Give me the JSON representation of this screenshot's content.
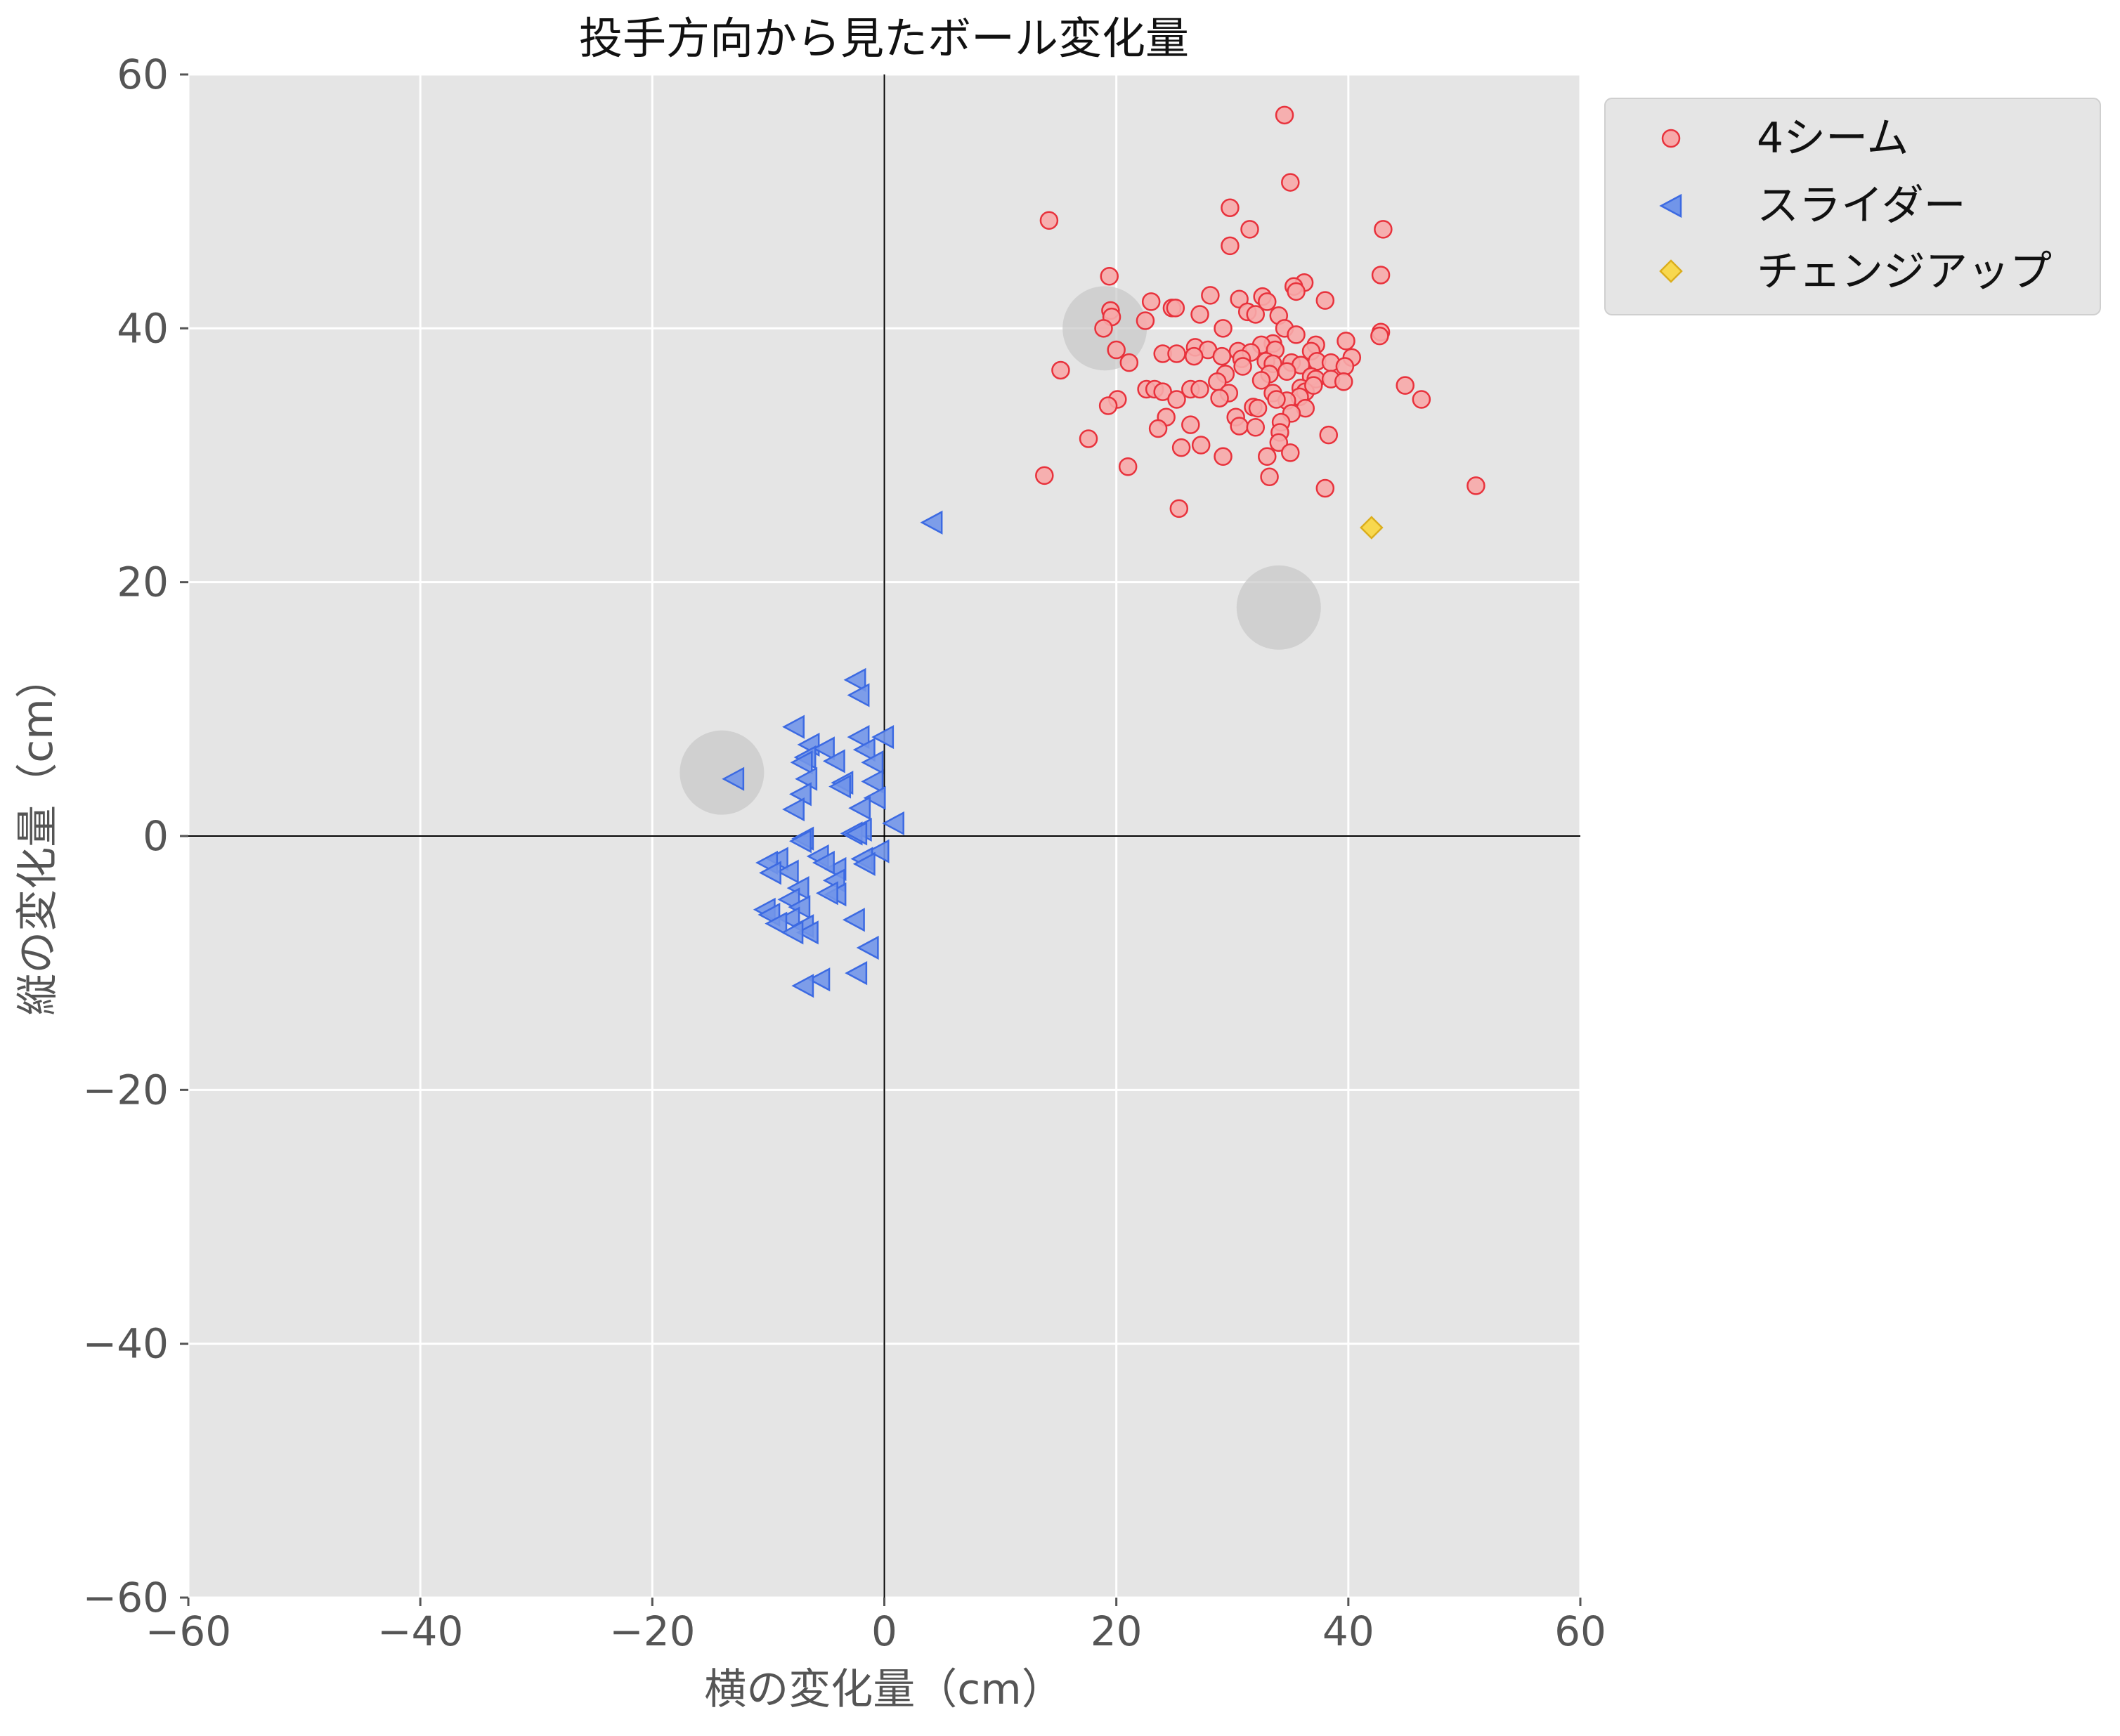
{
  "chart_data": {
    "type": "scatter",
    "title": "投手方向から見たボール変化量",
    "xlabel": "横の変化量（cm）",
    "ylabel": "縦の変化量（cm）",
    "xlim": [
      -60,
      60
    ],
    "ylim": [
      -60,
      60
    ],
    "xticks": [
      -60,
      -40,
      -20,
      0,
      20,
      40,
      60
    ],
    "yticks": [
      -60,
      -40,
      -20,
      0,
      20,
      40,
      60
    ],
    "xtick_labels": [
      "−60",
      "−40",
      "−20",
      "0",
      "20",
      "40",
      "60"
    ],
    "ytick_labels": [
      "−60",
      "−40",
      "−20",
      "0",
      "20",
      "40",
      "60"
    ],
    "grid": true,
    "background": "#e5e5e5",
    "legend_position": "outside-top-right",
    "zero_lines": true,
    "series": [
      {
        "name": "4シーム",
        "marker": "circle",
        "fill": "#f7a9a9",
        "edge": "#e8323c",
        "points": [
          [
            34.5,
            56.8
          ],
          [
            35,
            51.5
          ],
          [
            14.2,
            48.5
          ],
          [
            29.8,
            49.5
          ],
          [
            43,
            47.8
          ],
          [
            31.5,
            47.8
          ],
          [
            29.8,
            46.5
          ],
          [
            42.8,
            44.2
          ],
          [
            19.4,
            44.1
          ],
          [
            36.2,
            43.6
          ],
          [
            35.3,
            43.3
          ],
          [
            35.5,
            42.9
          ],
          [
            28.1,
            42.6
          ],
          [
            30.6,
            42.3
          ],
          [
            32.6,
            42.5
          ],
          [
            33,
            42.1
          ],
          [
            38,
            42.2
          ],
          [
            23,
            42.1
          ],
          [
            24.8,
            41.6
          ],
          [
            25.1,
            41.6
          ],
          [
            19.5,
            41.4
          ],
          [
            31.3,
            41.3
          ],
          [
            27.2,
            41.1
          ],
          [
            32,
            41.1
          ],
          [
            34,
            41
          ],
          [
            19.6,
            40.9
          ],
          [
            22.5,
            40.6
          ],
          [
            34.5,
            40
          ],
          [
            29.2,
            40
          ],
          [
            18.9,
            40
          ],
          [
            42.8,
            39.7
          ],
          [
            42.7,
            39.4
          ],
          [
            35.5,
            39.5
          ],
          [
            39.8,
            39
          ],
          [
            33.5,
            38.8
          ],
          [
            32.5,
            38.7
          ],
          [
            37.2,
            38.7
          ],
          [
            26.8,
            38.5
          ],
          [
            27.9,
            38.3
          ],
          [
            20,
            38.3
          ],
          [
            30.5,
            38.2
          ],
          [
            33.7,
            38.3
          ],
          [
            31.6,
            38.1
          ],
          [
            36.8,
            38.2
          ],
          [
            24,
            38
          ],
          [
            25.2,
            38
          ],
          [
            29.1,
            37.8
          ],
          [
            26.7,
            37.8
          ],
          [
            30.8,
            37.6
          ],
          [
            40.3,
            37.7
          ],
          [
            32.9,
            37.4
          ],
          [
            33.5,
            37.2
          ],
          [
            35.1,
            37.3
          ],
          [
            37.3,
            37.4
          ],
          [
            38.5,
            37.3
          ],
          [
            21.1,
            37.3
          ],
          [
            30.9,
            37
          ],
          [
            39.7,
            37
          ],
          [
            35.9,
            37.1
          ],
          [
            34.7,
            36.6
          ],
          [
            15.2,
            36.7
          ],
          [
            36.8,
            36.2
          ],
          [
            33.2,
            36.4
          ],
          [
            29.4,
            36.4
          ],
          [
            37.2,
            36
          ],
          [
            38.5,
            36
          ],
          [
            39.6,
            35.8
          ],
          [
            32.5,
            35.9
          ],
          [
            28.7,
            35.8
          ],
          [
            26.4,
            35.2
          ],
          [
            27.2,
            35.2
          ],
          [
            35.9,
            35.3
          ],
          [
            36.3,
            35
          ],
          [
            22.6,
            35.2
          ],
          [
            23.3,
            35.2
          ],
          [
            24,
            35
          ],
          [
            29.7,
            34.9
          ],
          [
            33.5,
            34.9
          ],
          [
            35.8,
            34.6
          ],
          [
            37,
            35.5
          ],
          [
            44.9,
            35.5
          ],
          [
            46.3,
            34.4
          ],
          [
            20.1,
            34.4
          ],
          [
            19.3,
            33.9
          ],
          [
            25.2,
            34.4
          ],
          [
            28.9,
            34.5
          ],
          [
            34.7,
            34.3
          ],
          [
            33.8,
            34.4
          ],
          [
            31.8,
            33.8
          ],
          [
            32.2,
            33.7
          ],
          [
            36.3,
            33.7
          ],
          [
            35.1,
            33.3
          ],
          [
            24.3,
            33
          ],
          [
            30.3,
            33
          ],
          [
            34.2,
            32.6
          ],
          [
            30.6,
            32.3
          ],
          [
            26.4,
            32.4
          ],
          [
            32,
            32.2
          ],
          [
            23.6,
            32.1
          ],
          [
            34.1,
            31.8
          ],
          [
            38.3,
            31.6
          ],
          [
            17.6,
            31.3
          ],
          [
            34,
            31
          ],
          [
            25.6,
            30.6
          ],
          [
            27.3,
            30.8
          ],
          [
            35,
            30.2
          ],
          [
            33,
            29.9
          ],
          [
            29.2,
            29.9
          ],
          [
            21,
            29.1
          ],
          [
            13.8,
            28.4
          ],
          [
            33.2,
            28.3
          ],
          [
            51,
            27.6
          ],
          [
            38,
            27.4
          ],
          [
            25.4,
            25.8
          ]
        ]
      },
      {
        "name": "スライダー",
        "marker": "triangle-left",
        "fill": "#7195e9",
        "edge": "#3c6ae2",
        "points": [
          [
            4.1,
            24.7
          ],
          [
            -2.5,
            12.3
          ],
          [
            -2.2,
            11.1
          ],
          [
            -7.8,
            8.6
          ],
          [
            -0.1,
            7.8
          ],
          [
            -2.2,
            7.8
          ],
          [
            -6.5,
            7.2
          ],
          [
            -5.2,
            6.9
          ],
          [
            -1.7,
            6.8
          ],
          [
            -6.8,
            6.2
          ],
          [
            -7.1,
            5.8
          ],
          [
            -1,
            5.8
          ],
          [
            -4.3,
            5.9
          ],
          [
            -1,
            4.3
          ],
          [
            -3.6,
            4.2
          ],
          [
            -6.7,
            4.5
          ],
          [
            -13,
            4.5
          ],
          [
            -7.2,
            3.3
          ],
          [
            -3.8,
            3.9
          ],
          [
            -0.8,
            3
          ],
          [
            -7.8,
            2.1
          ],
          [
            -2.1,
            2.2
          ],
          [
            -2,
            0.5
          ],
          [
            0.8,
            1
          ],
          [
            -2.8,
            0.2
          ],
          [
            -7,
            -0.2
          ],
          [
            -2.4,
            0.2
          ],
          [
            -7.2,
            -0.4
          ],
          [
            -0.5,
            -1.2
          ],
          [
            -1.9,
            -1.8
          ],
          [
            -5.7,
            -1.6
          ],
          [
            -9.2,
            -1.8
          ],
          [
            -10.1,
            -2.1
          ],
          [
            -8.3,
            -2.8
          ],
          [
            -4.2,
            -2.6
          ],
          [
            -9.8,
            -2.9
          ],
          [
            -1.7,
            -2.2
          ],
          [
            -5.2,
            -2.1
          ],
          [
            -4.3,
            -3.5
          ],
          [
            -7.4,
            -4.1
          ],
          [
            -4.2,
            -4.6
          ],
          [
            -4.9,
            -4.5
          ],
          [
            -8.2,
            -5
          ],
          [
            -10.3,
            -5.8
          ],
          [
            -7.3,
            -5.6
          ],
          [
            -8.2,
            -6.5
          ],
          [
            -9.9,
            -6.2
          ],
          [
            -2.6,
            -6.6
          ],
          [
            -9.3,
            -6.9
          ],
          [
            -7,
            -7.1
          ],
          [
            -6.6,
            -7.6
          ],
          [
            -7.9,
            -7.6
          ],
          [
            -1.4,
            -8.8
          ],
          [
            -2.4,
            -10.8
          ],
          [
            -5.6,
            -11.3
          ],
          [
            -7,
            -11.8
          ]
        ]
      },
      {
        "name": "チェンジアップ",
        "marker": "diamond",
        "fill": "#f8d84e",
        "edge": "#dbae1e",
        "points": [
          [
            42,
            24.3
          ]
        ]
      },
      {
        "name": "",
        "marker": "circle-large",
        "fill": "#c8c8c8",
        "edge": "#c8c8c8",
        "points": [
          [
            19,
            40
          ],
          [
            34,
            18
          ],
          [
            -14,
            5
          ]
        ]
      }
    ]
  }
}
